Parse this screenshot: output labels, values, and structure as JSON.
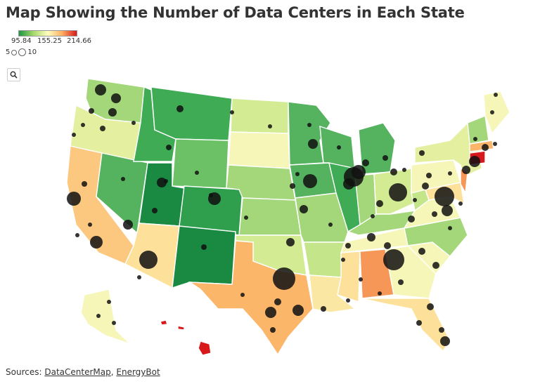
{
  "title": "Map Showing the Number of Data Centers in Each State",
  "legend": {
    "color_ticks": [
      "95.84",
      "155.25",
      "214.66"
    ],
    "color_scale": [
      "#1a9641",
      "#a6d96a",
      "#ffffbf",
      "#fdae61",
      "#d7191c"
    ],
    "size_min": "5",
    "size_max": "10"
  },
  "search_button_icon": "search-icon",
  "footer": {
    "prefix": "Sources:",
    "source1": "DataCenterMap",
    "separator": ",",
    "source2": "EnergyBot"
  },
  "colors": {
    "dark_green": "#1a8a43",
    "green": "#3fab55",
    "mid_green": "#6cc065",
    "light_green": "#a3d77a",
    "yellow_green": "#d3ec94",
    "pale_yellow": "#f6f6b8",
    "light_orange": "#fde19a",
    "orange": "#fcb66a",
    "dark_orange": "#f79757",
    "red": "#d7191c"
  },
  "chart_data": {
    "type": "choropleth-with-bubbles",
    "color_range": [
      95.84,
      214.66
    ],
    "color_midpoint": 155.25,
    "bubble_size_legend": [
      5,
      10
    ]
  }
}
